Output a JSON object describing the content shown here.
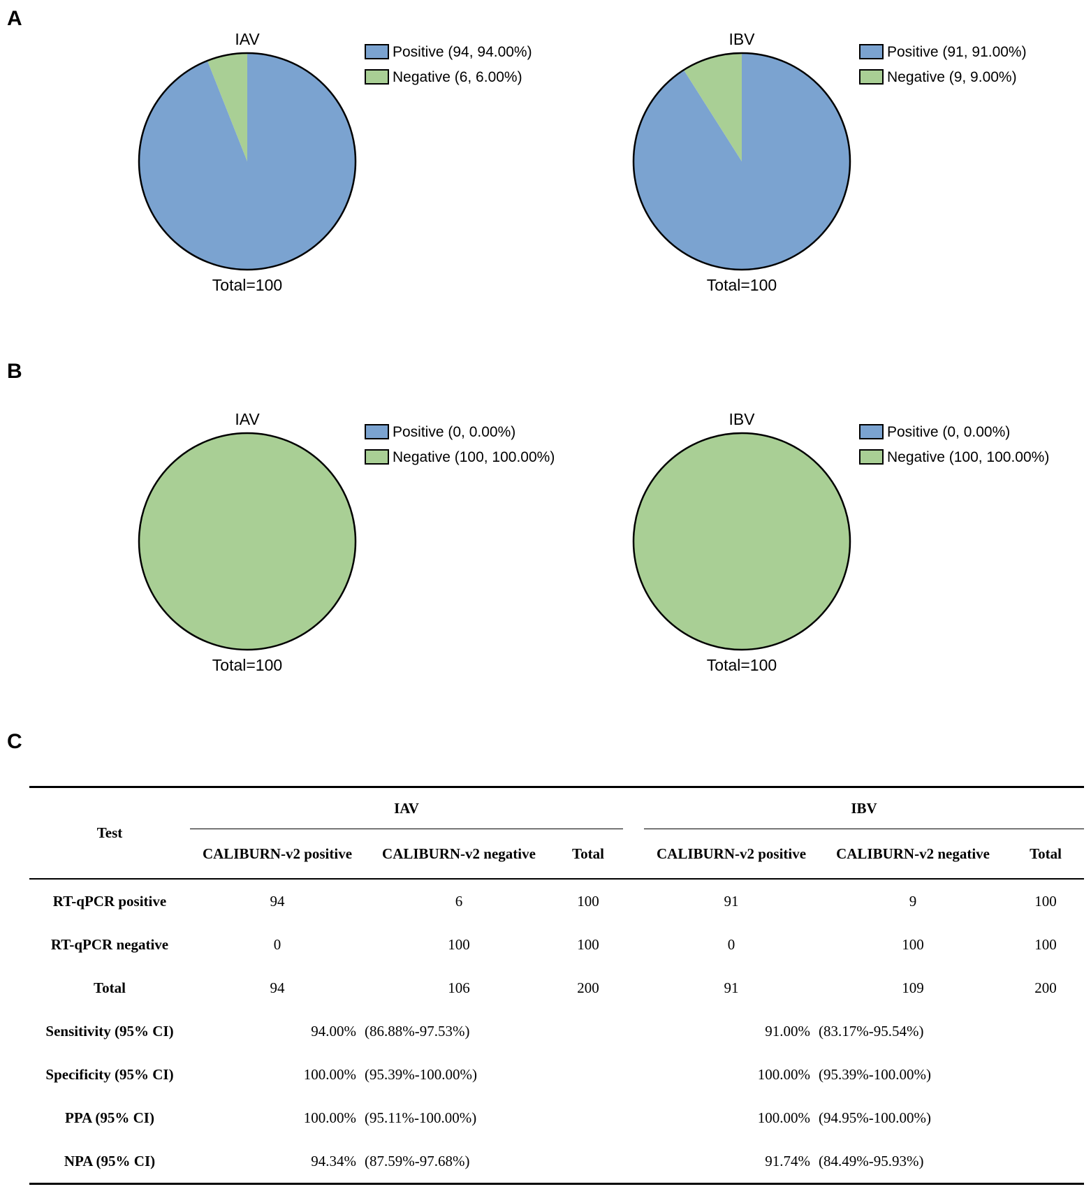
{
  "panels": {
    "a_letter": "A",
    "b_letter": "B",
    "c_letter": "C"
  },
  "colors": {
    "positive": "#7ba3d0",
    "negative": "#a9cf95",
    "outline": "#000000"
  },
  "chart_data": [
    {
      "type": "pie",
      "panel": "A",
      "title": "IAV",
      "total_label": "Total=100",
      "slices": [
        {
          "label": "Positive (94, 94.00%)",
          "category": "Positive",
          "value": 94
        },
        {
          "label": "Negative (6, 6.00%)",
          "category": "Negative",
          "value": 6
        }
      ]
    },
    {
      "type": "pie",
      "panel": "A",
      "title": "IBV",
      "total_label": "Total=100",
      "slices": [
        {
          "label": "Positive (91, 91.00%)",
          "category": "Positive",
          "value": 91
        },
        {
          "label": "Negative (9, 9.00%)",
          "category": "Negative",
          "value": 9
        }
      ]
    },
    {
      "type": "pie",
      "panel": "B",
      "title": "IAV",
      "total_label": "Total=100",
      "slices": [
        {
          "label": "Positive (0, 0.00%)",
          "category": "Positive",
          "value": 0
        },
        {
          "label": "Negative (100, 100.00%)",
          "category": "Negative",
          "value": 100
        }
      ]
    },
    {
      "type": "pie",
      "panel": "B",
      "title": "IBV",
      "total_label": "Total=100",
      "slices": [
        {
          "label": "Positive (0, 0.00%)",
          "category": "Positive",
          "value": 0
        },
        {
          "label": "Negative (100, 100.00%)",
          "category": "Negative",
          "value": 100
        }
      ]
    },
    {
      "type": "table",
      "panel": "C",
      "test_header": "Test",
      "groups": [
        "IAV",
        "IBV"
      ],
      "columns": [
        "CALIBURN-v2 positive",
        "CALIBURN-v2 negative",
        "Total",
        "CALIBURN-v2 positive",
        "CALIBURN-v2 negative",
        "Total"
      ],
      "rows": [
        {
          "label": "RT-qPCR positive",
          "cells": [
            "94",
            "6",
            "100",
            "91",
            "9",
            "100"
          ]
        },
        {
          "label": "RT-qPCR negative",
          "cells": [
            "0",
            "100",
            "100",
            "0",
            "100",
            "100"
          ]
        },
        {
          "label": "Total",
          "cells": [
            "94",
            "106",
            "200",
            "91",
            "109",
            "200"
          ]
        }
      ],
      "metrics": [
        {
          "label": "Sensitivity (95% CI)",
          "iav_value": "94.00%",
          "iav_ci": "(86.88%-97.53%)",
          "ibv_value": "91.00%",
          "ibv_ci": "(83.17%-95.54%)"
        },
        {
          "label": "Specificity (95% CI)",
          "iav_value": "100.00%",
          "iav_ci": "(95.39%-100.00%)",
          "ibv_value": "100.00%",
          "ibv_ci": "(95.39%-100.00%)"
        },
        {
          "label": "PPA (95% CI)",
          "iav_value": "100.00%",
          "iav_ci": "(95.11%-100.00%)",
          "ibv_value": "100.00%",
          "ibv_ci": "(94.95%-100.00%)"
        },
        {
          "label": "NPA (95% CI)",
          "iav_value": "94.34%",
          "iav_ci": "(87.59%-97.68%)",
          "ibv_value": "91.74%",
          "ibv_ci": "(84.49%-95.93%)"
        }
      ]
    }
  ]
}
